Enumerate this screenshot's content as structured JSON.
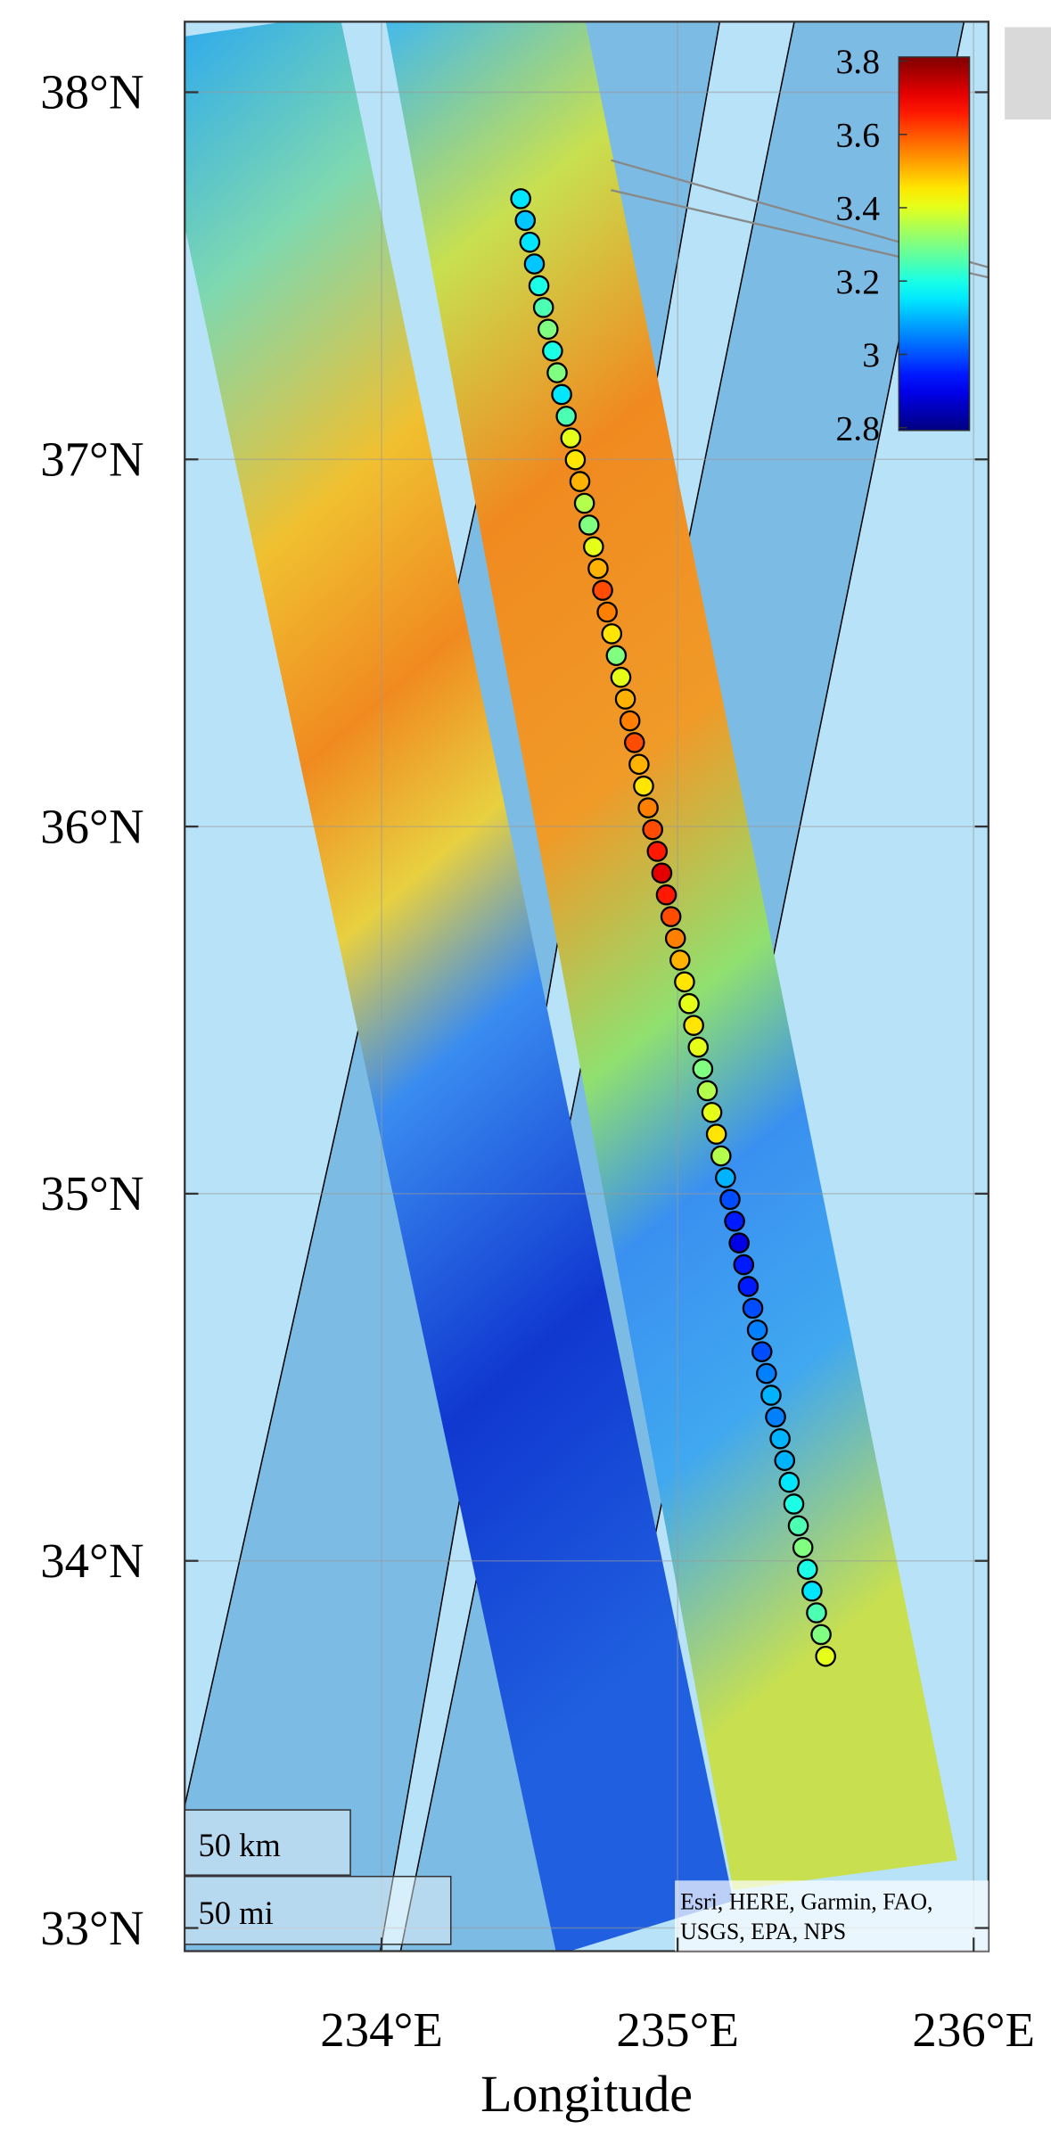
{
  "map": {
    "xlabel": "Longitude",
    "xlim": [
      233.335,
      236.05
    ],
    "ylim": [
      32.937,
      38.192
    ],
    "xticks": [
      {
        "value": 234,
        "label": "234°E"
      },
      {
        "value": 235,
        "label": "235°E"
      },
      {
        "value": 236,
        "label": "236°E"
      }
    ],
    "yticks": [
      {
        "value": 38,
        "label": "38°N"
      },
      {
        "value": 37,
        "label": "37°N"
      },
      {
        "value": 36,
        "label": "36°N"
      },
      {
        "value": 35,
        "label": "35°N"
      },
      {
        "value": 34,
        "label": "34°N"
      },
      {
        "value": 33,
        "label": "33°N"
      }
    ],
    "grid": true,
    "colorbar": {
      "clim": [
        2.8,
        3.8
      ],
      "ticks": [
        3.8,
        3.6,
        3.4,
        3.2,
        3,
        2.8
      ],
      "colormap": "jet"
    },
    "track": {
      "start": [
        234.47,
        37.71
      ],
      "end": [
        235.5,
        33.74
      ],
      "values": [
        3.15,
        3.12,
        3.15,
        3.12,
        3.2,
        3.25,
        3.3,
        3.2,
        3.3,
        3.15,
        3.25,
        3.4,
        3.45,
        3.5,
        3.35,
        3.3,
        3.4,
        3.5,
        3.6,
        3.55,
        3.45,
        3.3,
        3.4,
        3.5,
        3.55,
        3.6,
        3.5,
        3.45,
        3.55,
        3.6,
        3.65,
        3.7,
        3.65,
        3.6,
        3.55,
        3.5,
        3.45,
        3.4,
        3.45,
        3.4,
        3.3,
        3.35,
        3.4,
        3.45,
        3.35,
        3.1,
        3.0,
        2.95,
        2.9,
        2.95,
        2.95,
        3.0,
        3.05,
        3.0,
        3.05,
        3.1,
        3.05,
        3.1,
        3.1,
        3.15,
        3.2,
        3.25,
        3.3,
        3.2,
        3.15,
        3.25,
        3.3,
        3.4
      ]
    },
    "scalebar": [
      "50 km",
      "50 mi"
    ],
    "attribution": [
      "Esri, HERE, Garmin, FAO,",
      "USGS, EPA, NPS"
    ]
  }
}
